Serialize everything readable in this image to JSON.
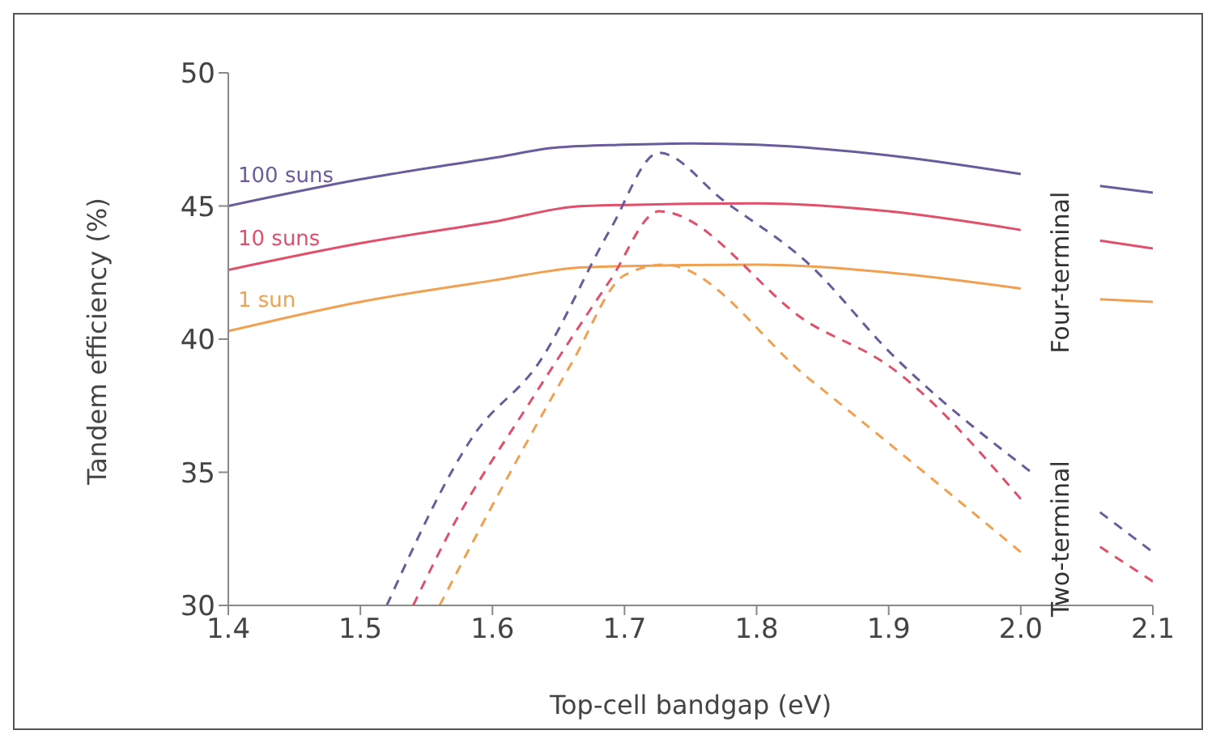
{
  "chart_data": {
    "type": "line",
    "xlabel": "Top-cell bandgap (eV)",
    "ylabel": "Tandem efficiency (%)",
    "xlim": [
      1.4,
      2.1
    ],
    "xticks": [
      {
        "value": 1.4,
        "label": "1.4"
      },
      {
        "value": 1.5,
        "label": "1.5"
      },
      {
        "value": 1.6,
        "label": "1.6"
      },
      {
        "value": 1.7,
        "label": "1.7"
      },
      {
        "value": 1.8,
        "label": "1.8"
      },
      {
        "value": 1.9,
        "label": "1.9"
      },
      {
        "value": 2.0,
        "label": "2.0"
      },
      {
        "value": 2.1,
        "label": "2.1"
      }
    ],
    "ylim": [
      30,
      50
    ],
    "yticks": [
      30,
      35,
      40,
      45,
      50
    ],
    "marker": "none",
    "annotations": [
      "Four-terminal",
      "Two-terminal"
    ],
    "series": [
      {
        "name": "100 suns",
        "color": "#6a5c9c",
        "line_style": "solid",
        "x": [
          1.4,
          1.5,
          1.6,
          1.65,
          1.7,
          1.75,
          1.8,
          1.9,
          2.0,
          2.03,
          2.06,
          2.1
        ],
        "values": [
          45.0,
          46.0,
          46.8,
          47.2,
          47.3,
          47.35,
          47.3,
          46.9,
          46.2,
          null,
          45.75,
          45.5
        ]
      },
      {
        "name": "10 suns",
        "color": "#e0506a",
        "line_style": "solid",
        "x": [
          1.4,
          1.5,
          1.6,
          1.67,
          1.8,
          1.9,
          2.0,
          2.03,
          2.06,
          2.1
        ],
        "values": [
          42.6,
          43.6,
          44.4,
          45.0,
          45.1,
          44.8,
          44.1,
          null,
          43.7,
          43.4
        ]
      },
      {
        "name": "1 sun",
        "color": "#f0a050",
        "line_style": "solid",
        "x": [
          1.4,
          1.5,
          1.6,
          1.67,
          1.8,
          1.9,
          2.0,
          2.03,
          2.06,
          2.1
        ],
        "values": [
          40.3,
          41.4,
          42.2,
          42.7,
          42.8,
          42.5,
          41.9,
          null,
          41.5,
          41.4
        ]
      },
      {
        "color": "#6a5c9c",
        "line_style": "dashed",
        "x": [
          1.52,
          1.586,
          1.635,
          1.689,
          1.726,
          1.775,
          1.84,
          1.901,
          2.008,
          2.03,
          2.06,
          2.1
        ],
        "values": [
          30,
          36.4,
          39.1,
          44.1,
          47.0,
          45.2,
          42.8,
          39.5,
          35.0,
          null,
          33.5,
          32.0
        ]
      },
      {
        "color": "#e0506a",
        "line_style": "dashed",
        "x": [
          1.54,
          1.567,
          1.628,
          1.689,
          1.726,
          1.84,
          1.9,
          2.0,
          2.03,
          2.06,
          2.1
        ],
        "values": [
          30,
          32.7,
          37.6,
          42.2,
          44.8,
          40.6,
          39.0,
          34.0,
          null,
          32.2,
          30.9
        ]
      },
      {
        "color": "#f0a050",
        "line_style": "dashed",
        "x": [
          1.56,
          1.595,
          1.66,
          1.7,
          1.73,
          1.84,
          2.0
        ],
        "values": [
          30,
          33.3,
          39.1,
          42.4,
          42.8,
          38.5,
          32.0
        ]
      }
    ]
  }
}
